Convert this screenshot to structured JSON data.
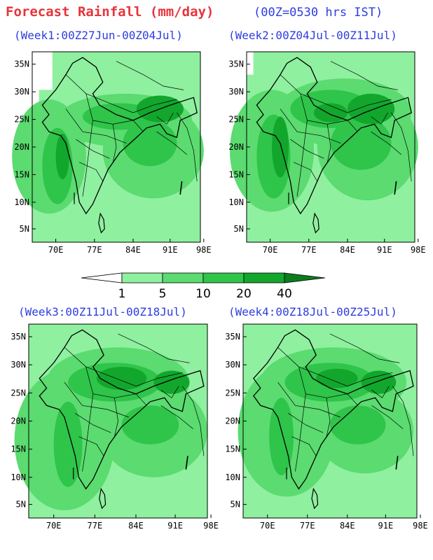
{
  "title": "Forecast Rainfall (mm/day)",
  "time_note": "(00Z=0530 hrs IST)",
  "lat_ticks": [
    "35N",
    "30N",
    "25N",
    "20N",
    "15N",
    "10N",
    "5N"
  ],
  "lon_ticks": [
    "70E",
    "77E",
    "84E",
    "91E",
    "98E"
  ],
  "panels": [
    {
      "label": "(Week1:00Z27Jun-00Z04Jul)"
    },
    {
      "label": "(Week2:00Z04Jul-00Z11Jul)"
    },
    {
      "label": "(Week3:00Z11Jul-00Z18Jul)"
    },
    {
      "label": "(Week4:00Z18Jul-00Z25Jul)"
    }
  ],
  "legend": {
    "levels": [
      "1",
      "5",
      "10",
      "20",
      "40"
    ],
    "colors": [
      "#ffffff",
      "#8ff0a0",
      "#5bdb70",
      "#2fc44a",
      "#12a62d",
      "#0b7d1f"
    ]
  }
}
